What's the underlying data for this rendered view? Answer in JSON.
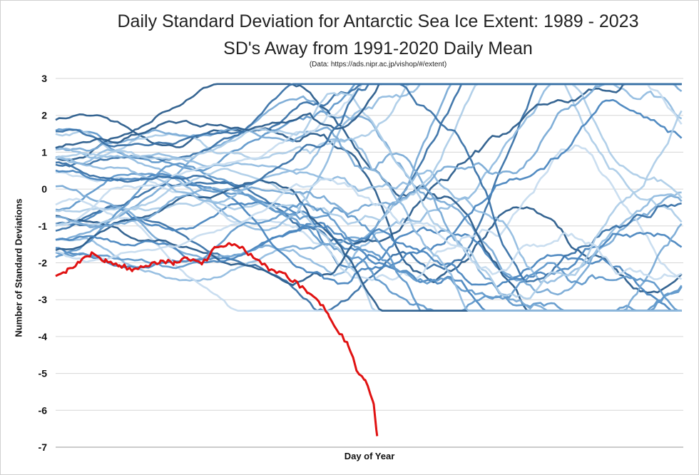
{
  "chart_data": {
    "type": "line",
    "title": "Daily Standard Deviation for Antarctic Sea Ice Extent: 1989 - 2023",
    "subtitle": "SD's Away from 1991-2020 Daily Mean",
    "source": "(Data: https://ads.nipr.ac.jp/vishop/#/extent)",
    "xlabel": "Day of Year",
    "ylabel": "Number of Standard Deviations",
    "ylim": [
      -7,
      3
    ],
    "xlim": [
      1,
      366
    ],
    "yticks": [
      "3",
      "2",
      "1",
      "0",
      "-1",
      "-2",
      "-3",
      "-4",
      "-5",
      "-6",
      "-7"
    ],
    "grid": "horizontal",
    "legend": "none",
    "background_series_colors": [
      "#2b5d8c",
      "#3a72a8",
      "#4a86bf",
      "#6199cb",
      "#7aabd6",
      "#94bde0",
      "#aecde8",
      "#c7dcef"
    ],
    "series": [
      {
        "highlight": true,
        "color": "#e01212",
        "x": [
          1,
          8,
          15,
          22,
          30,
          38,
          46,
          54,
          62,
          70,
          78,
          86,
          94,
          102,
          110,
          118,
          125,
          133,
          140,
          148,
          155,
          160,
          166,
          171,
          176,
          181,
          186,
          188
        ],
        "values": [
          -2.3,
          -2.2,
          -2.0,
          -1.75,
          -1.95,
          -2.05,
          -2.2,
          -2.05,
          -1.95,
          -2.0,
          -1.85,
          -2.05,
          -1.6,
          -1.5,
          -1.6,
          -1.95,
          -2.15,
          -2.3,
          -2.5,
          -2.8,
          -3.1,
          -3.4,
          -3.9,
          -4.2,
          -4.9,
          -5.2,
          -5.8,
          -6.7
        ]
      }
    ]
  }
}
